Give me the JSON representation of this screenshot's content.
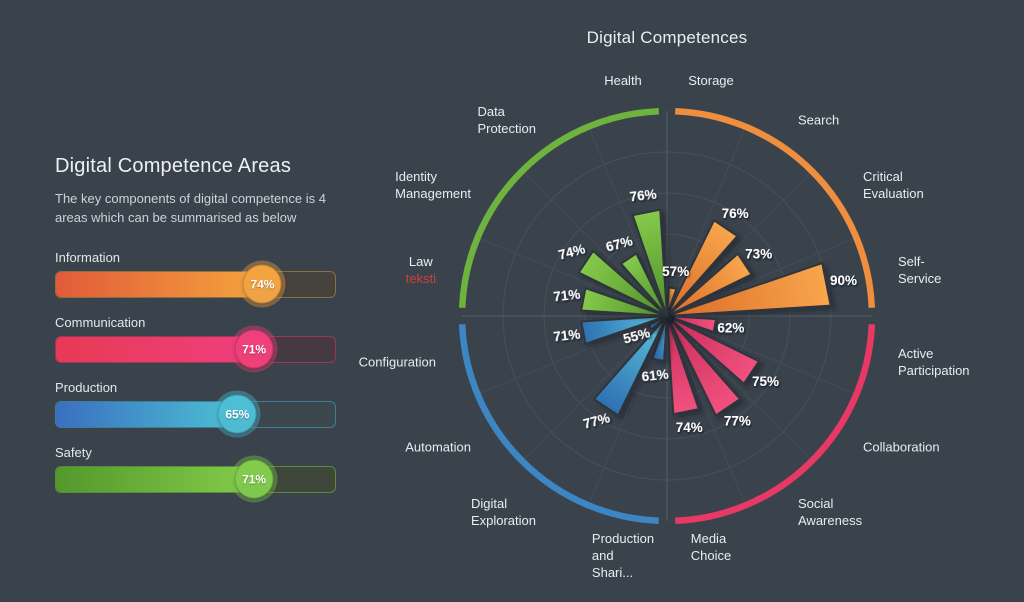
{
  "background": "#3a434c",
  "left_panel": {
    "title": "Digital Competence Areas",
    "subtitle": "The key components of digital competence is 4 areas which can be summarised as below",
    "bars": [
      {
        "label": "Information",
        "value": 74,
        "fill_from": "#e25a3a",
        "fill_to": "#f4a43c",
        "badge": "#efa248",
        "badge_ring": "rgba(240,162,72,0.40)",
        "track": "#45423b",
        "border": "#86713f"
      },
      {
        "label": "Communication",
        "value": 71,
        "fill_from": "#e73a54",
        "fill_to": "#ef3f7e",
        "badge": "#ee4176",
        "badge_ring": "rgba(238,65,118,0.40)",
        "track": "#453a42",
        "border": "#96395c"
      },
      {
        "label": "Production",
        "value": 65,
        "fill_from": "#3b6fc0",
        "fill_to": "#4cc0d4",
        "badge": "#4fb9d2",
        "badge_ring": "rgba(79,185,210,0.40)",
        "track": "#3b464d",
        "border": "#3e7f96"
      },
      {
        "label": "Safety",
        "value": 71,
        "fill_from": "#53982c",
        "fill_to": "#84cc4a",
        "badge": "#7cc84e",
        "badge_ring": "rgba(124,200,78,0.40)",
        "track": "#3e4539",
        "border": "#5c8a3c"
      }
    ]
  },
  "chart_data": {
    "type": "polar-rose",
    "title": "Digital Competences",
    "axis_range": [
      50,
      100
    ],
    "grid": "on",
    "legend_position": "none",
    "annotation_color": "#cc4336",
    "sector_angle_deg": 22.5,
    "series": [
      {
        "name": "Information",
        "color": "#ef8e3c",
        "inner": "#d96a26",
        "outer": "#f9a64d",
        "sectors": [
          {
            "label": "Storage",
            "value": 57
          },
          {
            "label": "Search",
            "value": 76
          },
          {
            "label": "Critical Evaluation",
            "display": "Critical\nEvaluation",
            "value": 73
          },
          {
            "label": "Self-Service",
            "display": "Self-\nService",
            "value": 90
          }
        ]
      },
      {
        "name": "Communication",
        "color": "#e73866",
        "inner": "#c62a56",
        "outer": "#f2527f",
        "sectors": [
          {
            "label": "Active Participation",
            "display": "Active\nParticipation",
            "value": 62
          },
          {
            "label": "Collaboration",
            "value": 75
          },
          {
            "label": "Social Awareness",
            "display": "Social\nAwareness",
            "value": 77
          },
          {
            "label": "Media Choice",
            "display": "Media\nChoice",
            "value": 74
          }
        ]
      },
      {
        "name": "Production",
        "color": "#3d86c4",
        "inner": "#5ec7de",
        "outer": "#2d6fb2",
        "sectors": [
          {
            "label": "Production and Shari...",
            "display": "Production\nand\nShari...",
            "value": 61
          },
          {
            "label": "Digital Exploration",
            "display": "Digital\nExploration",
            "value": 77
          },
          {
            "label": "Automation",
            "value": 55
          },
          {
            "label": "Configuration",
            "value": 71
          }
        ]
      },
      {
        "name": "Safety",
        "color": "#6db33e",
        "inner": "#4e8f2a",
        "outer": "#85ca4b",
        "sectors": [
          {
            "label": "Law",
            "value": 71,
            "annotation": "teksti"
          },
          {
            "label": "Identity Management",
            "display": "Identity\nManagement",
            "value": 74
          },
          {
            "label": "Data Protection",
            "display": "Data\nProtection",
            "value": 67
          },
          {
            "label": "Health",
            "value": 76
          }
        ]
      }
    ]
  }
}
